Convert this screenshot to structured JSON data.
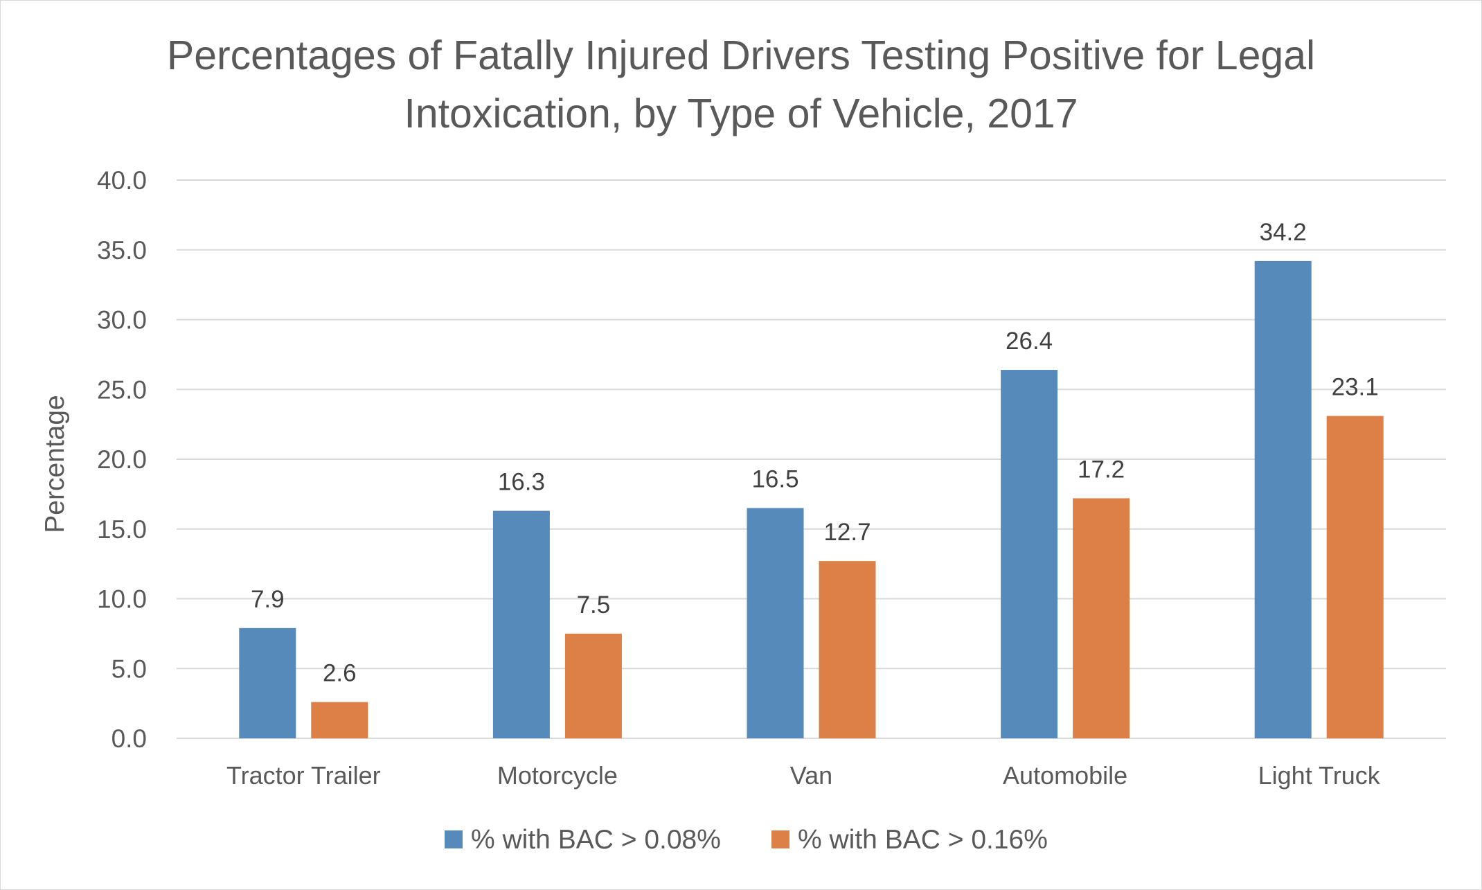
{
  "chart_data": {
    "type": "bar",
    "title_lines": [
      "Percentages of Fatally Injured Drivers Testing Positive for Legal",
      "Intoxication, by Type of Vehicle, 2017"
    ],
    "xlabel": "",
    "ylabel": "Percentage",
    "ylim": [
      0,
      40
    ],
    "ytick_step": 5,
    "ytick_labels": [
      "0.0",
      "5.0",
      "10.0",
      "15.0",
      "20.0",
      "25.0",
      "30.0",
      "35.0",
      "40.0"
    ],
    "grid": true,
    "legend_position": "bottom",
    "categories": [
      "Tractor Trailer",
      "Motorcycle",
      "Van",
      "Automobile",
      "Light Truck"
    ],
    "series": [
      {
        "name": "% with BAC > 0.08%",
        "color": "#558ABB",
        "values": [
          7.9,
          16.3,
          16.5,
          26.4,
          34.2
        ],
        "labels": [
          "7.9",
          "16.3",
          "16.5",
          "26.4",
          "34.2"
        ]
      },
      {
        "name": "% with BAC > 0.16%",
        "color": "#DD8047",
        "values": [
          2.6,
          7.5,
          12.7,
          17.2,
          23.1
        ],
        "labels": [
          "2.6",
          "7.5",
          "12.7",
          "17.2",
          "23.1"
        ]
      }
    ]
  }
}
